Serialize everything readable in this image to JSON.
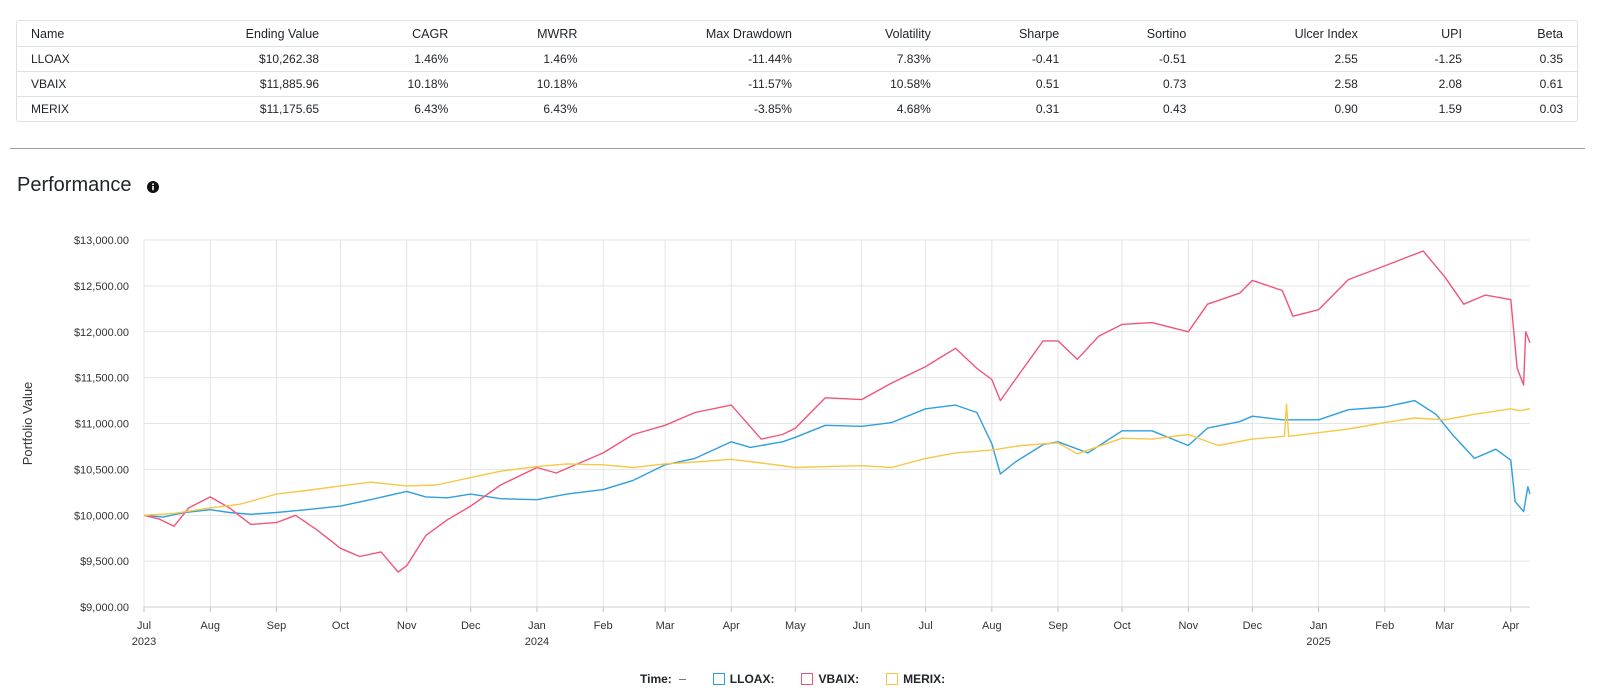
{
  "stats_table": {
    "columns": [
      "Name",
      "Ending Value",
      "CAGR",
      "MWRR",
      "Max Drawdown",
      "Volatility",
      "Sharpe",
      "Sortino",
      "Ulcer Index",
      "UPI",
      "Beta"
    ],
    "rows": [
      [
        "LLOAX",
        "$10,262.38",
        "1.46%",
        "1.46%",
        "-11.44%",
        "7.83%",
        "-0.41",
        "-0.51",
        "2.55",
        "-1.25",
        "0.35"
      ],
      [
        "VBAIX",
        "$11,885.96",
        "10.18%",
        "10.18%",
        "-11.57%",
        "10.58%",
        "0.51",
        "0.73",
        "2.58",
        "2.08",
        "0.61"
      ],
      [
        "MERIX",
        "$11,175.65",
        "6.43%",
        "6.43%",
        "-3.85%",
        "4.68%",
        "0.31",
        "0.43",
        "0.90",
        "1.59",
        "0.03"
      ]
    ]
  },
  "performance": {
    "title": "Performance",
    "info_icon": "info-circle-icon"
  },
  "chart_data": {
    "type": "line",
    "title": "",
    "xlabel": "Time",
    "ylabel": "Portfolio Value",
    "ylim": [
      9000,
      13000
    ],
    "yticks": [
      9000,
      9500,
      10000,
      10500,
      11000,
      11500,
      12000,
      12500,
      13000
    ],
    "ytick_labels": [
      "$9,000.00",
      "$9,500.00",
      "$10,000.00",
      "$10,500.00",
      "$11,000.00",
      "$11,500.00",
      "$12,000.00",
      "$12,500.00",
      "$13,000.00"
    ],
    "xlim": [
      "2023-07-01",
      "2025-04-10"
    ],
    "xticks": [
      {
        "date": "2023-07-01",
        "label": "Jul",
        "sublabel": "2023"
      },
      {
        "date": "2023-08-01",
        "label": "Aug",
        "sublabel": ""
      },
      {
        "date": "2023-09-01",
        "label": "Sep",
        "sublabel": ""
      },
      {
        "date": "2023-10-01",
        "label": "Oct",
        "sublabel": ""
      },
      {
        "date": "2023-11-01",
        "label": "Nov",
        "sublabel": ""
      },
      {
        "date": "2023-12-01",
        "label": "Dec",
        "sublabel": ""
      },
      {
        "date": "2024-01-01",
        "label": "Jan",
        "sublabel": "2024"
      },
      {
        "date": "2024-02-01",
        "label": "Feb",
        "sublabel": ""
      },
      {
        "date": "2024-03-01",
        "label": "Mar",
        "sublabel": ""
      },
      {
        "date": "2024-04-01",
        "label": "Apr",
        "sublabel": ""
      },
      {
        "date": "2024-05-01",
        "label": "May",
        "sublabel": ""
      },
      {
        "date": "2024-06-01",
        "label": "Jun",
        "sublabel": ""
      },
      {
        "date": "2024-07-01",
        "label": "Jul",
        "sublabel": ""
      },
      {
        "date": "2024-08-01",
        "label": "Aug",
        "sublabel": ""
      },
      {
        "date": "2024-09-01",
        "label": "Sep",
        "sublabel": ""
      },
      {
        "date": "2024-10-01",
        "label": "Oct",
        "sublabel": ""
      },
      {
        "date": "2024-11-01",
        "label": "Nov",
        "sublabel": ""
      },
      {
        "date": "2024-12-01",
        "label": "Dec",
        "sublabel": ""
      },
      {
        "date": "2025-01-01",
        "label": "Jan",
        "sublabel": "2025"
      },
      {
        "date": "2025-02-01",
        "label": "Feb",
        "sublabel": ""
      },
      {
        "date": "2025-03-01",
        "label": "Mar",
        "sublabel": ""
      },
      {
        "date": "2025-04-01",
        "label": "Apr",
        "sublabel": ""
      }
    ],
    "grid": true,
    "legend_position": "bottom-center",
    "series": [
      {
        "name": "LLOAX:",
        "color": "#2e9fe0",
        "points": [
          [
            "2023-07-01",
            10000
          ],
          [
            "2023-07-10",
            9980
          ],
          [
            "2023-07-20",
            10030
          ],
          [
            "2023-08-01",
            10060
          ],
          [
            "2023-08-10",
            10030
          ],
          [
            "2023-08-20",
            10010
          ],
          [
            "2023-09-01",
            10030
          ],
          [
            "2023-09-15",
            10060
          ],
          [
            "2023-10-01",
            10100
          ],
          [
            "2023-10-15",
            10170
          ],
          [
            "2023-11-01",
            10260
          ],
          [
            "2023-11-10",
            10200
          ],
          [
            "2023-11-20",
            10190
          ],
          [
            "2023-12-01",
            10230
          ],
          [
            "2023-12-15",
            10180
          ],
          [
            "2024-01-01",
            10170
          ],
          [
            "2024-01-15",
            10230
          ],
          [
            "2024-02-01",
            10280
          ],
          [
            "2024-02-15",
            10380
          ],
          [
            "2024-03-01",
            10550
          ],
          [
            "2024-03-15",
            10620
          ],
          [
            "2024-04-01",
            10800
          ],
          [
            "2024-04-10",
            10740
          ],
          [
            "2024-04-25",
            10800
          ],
          [
            "2024-05-01",
            10850
          ],
          [
            "2024-05-15",
            10980
          ],
          [
            "2024-06-01",
            10970
          ],
          [
            "2024-06-15",
            11010
          ],
          [
            "2024-07-01",
            11160
          ],
          [
            "2024-07-15",
            11200
          ],
          [
            "2024-07-25",
            11120
          ],
          [
            "2024-08-01",
            10780
          ],
          [
            "2024-08-05",
            10450
          ],
          [
            "2024-08-12",
            10580
          ],
          [
            "2024-08-25",
            10770
          ],
          [
            "2024-09-01",
            10800
          ],
          [
            "2024-09-15",
            10680
          ],
          [
            "2024-10-01",
            10920
          ],
          [
            "2024-10-15",
            10920
          ],
          [
            "2024-11-01",
            10760
          ],
          [
            "2024-11-10",
            10950
          ],
          [
            "2024-11-25",
            11020
          ],
          [
            "2024-12-01",
            11080
          ],
          [
            "2024-12-15",
            11040
          ],
          [
            "2025-01-01",
            11040
          ],
          [
            "2025-01-15",
            11150
          ],
          [
            "2025-02-01",
            11180
          ],
          [
            "2025-02-15",
            11250
          ],
          [
            "2025-02-25",
            11100
          ],
          [
            "2025-03-05",
            10870
          ],
          [
            "2025-03-15",
            10620
          ],
          [
            "2025-03-25",
            10720
          ],
          [
            "2025-04-01",
            10600
          ],
          [
            "2025-04-03",
            10150
          ],
          [
            "2025-04-07",
            10040
          ],
          [
            "2025-04-09",
            10310
          ],
          [
            "2025-04-10",
            10230
          ]
        ]
      },
      {
        "name": "VBAIX:",
        "color": "#f0557a",
        "points": [
          [
            "2023-07-01",
            10000
          ],
          [
            "2023-07-08",
            9960
          ],
          [
            "2023-07-15",
            9880
          ],
          [
            "2023-07-22",
            10080
          ],
          [
            "2023-08-01",
            10200
          ],
          [
            "2023-08-10",
            10080
          ],
          [
            "2023-08-20",
            9900
          ],
          [
            "2023-09-01",
            9920
          ],
          [
            "2023-09-10",
            10000
          ],
          [
            "2023-09-20",
            9840
          ],
          [
            "2023-10-01",
            9640
          ],
          [
            "2023-10-10",
            9550
          ],
          [
            "2023-10-20",
            9600
          ],
          [
            "2023-10-28",
            9380
          ],
          [
            "2023-11-01",
            9450
          ],
          [
            "2023-11-10",
            9780
          ],
          [
            "2023-11-20",
            9950
          ],
          [
            "2023-12-01",
            10100
          ],
          [
            "2023-12-15",
            10330
          ],
          [
            "2024-01-01",
            10520
          ],
          [
            "2024-01-10",
            10460
          ],
          [
            "2024-01-20",
            10560
          ],
          [
            "2024-02-01",
            10680
          ],
          [
            "2024-02-15",
            10880
          ],
          [
            "2024-03-01",
            10980
          ],
          [
            "2024-03-15",
            11120
          ],
          [
            "2024-04-01",
            11200
          ],
          [
            "2024-04-15",
            10830
          ],
          [
            "2024-04-25",
            10880
          ],
          [
            "2024-05-01",
            10950
          ],
          [
            "2024-05-15",
            11280
          ],
          [
            "2024-06-01",
            11260
          ],
          [
            "2024-06-15",
            11440
          ],
          [
            "2024-07-01",
            11620
          ],
          [
            "2024-07-15",
            11820
          ],
          [
            "2024-07-25",
            11600
          ],
          [
            "2024-08-01",
            11480
          ],
          [
            "2024-08-05",
            11250
          ],
          [
            "2024-08-12",
            11480
          ],
          [
            "2024-08-25",
            11900
          ],
          [
            "2024-09-01",
            11900
          ],
          [
            "2024-09-10",
            11700
          ],
          [
            "2024-09-20",
            11950
          ],
          [
            "2024-10-01",
            12080
          ],
          [
            "2024-10-15",
            12100
          ],
          [
            "2024-11-01",
            12000
          ],
          [
            "2024-11-10",
            12300
          ],
          [
            "2024-11-25",
            12420
          ],
          [
            "2024-12-01",
            12560
          ],
          [
            "2024-12-15",
            12450
          ],
          [
            "2024-12-20",
            12170
          ],
          [
            "2025-01-01",
            12240
          ],
          [
            "2025-01-15",
            12570
          ],
          [
            "2025-01-30",
            12700
          ],
          [
            "2025-02-10",
            12800
          ],
          [
            "2025-02-19",
            12880
          ],
          [
            "2025-03-01",
            12600
          ],
          [
            "2025-03-10",
            12300
          ],
          [
            "2025-03-20",
            12400
          ],
          [
            "2025-04-01",
            12350
          ],
          [
            "2025-04-04",
            11600
          ],
          [
            "2025-04-07",
            11420
          ],
          [
            "2025-04-08",
            12000
          ],
          [
            "2025-04-10",
            11880
          ]
        ]
      },
      {
        "name": "MERIX:",
        "color": "#f7c746",
        "points": [
          [
            "2023-07-01",
            10000
          ],
          [
            "2023-07-15",
            10020
          ],
          [
            "2023-08-01",
            10080
          ],
          [
            "2023-08-15",
            10120
          ],
          [
            "2023-09-01",
            10230
          ],
          [
            "2023-09-15",
            10270
          ],
          [
            "2023-10-01",
            10320
          ],
          [
            "2023-10-15",
            10360
          ],
          [
            "2023-11-01",
            10320
          ],
          [
            "2023-11-15",
            10330
          ],
          [
            "2023-12-01",
            10410
          ],
          [
            "2023-12-15",
            10480
          ],
          [
            "2024-01-01",
            10530
          ],
          [
            "2024-01-15",
            10560
          ],
          [
            "2024-02-01",
            10550
          ],
          [
            "2024-02-15",
            10520
          ],
          [
            "2024-03-01",
            10560
          ],
          [
            "2024-03-15",
            10580
          ],
          [
            "2024-04-01",
            10610
          ],
          [
            "2024-04-15",
            10570
          ],
          [
            "2024-05-01",
            10520
          ],
          [
            "2024-05-15",
            10530
          ],
          [
            "2024-06-01",
            10540
          ],
          [
            "2024-06-15",
            10520
          ],
          [
            "2024-07-01",
            10620
          ],
          [
            "2024-07-15",
            10680
          ],
          [
            "2024-08-01",
            10710
          ],
          [
            "2024-08-15",
            10760
          ],
          [
            "2024-09-01",
            10790
          ],
          [
            "2024-09-10",
            10670
          ],
          [
            "2024-10-01",
            10840
          ],
          [
            "2024-10-15",
            10830
          ],
          [
            "2024-11-01",
            10880
          ],
          [
            "2024-11-15",
            10760
          ],
          [
            "2024-12-01",
            10830
          ],
          [
            "2024-12-16",
            10860
          ],
          [
            "2024-12-17",
            11210
          ],
          [
            "2024-12-18",
            10860
          ],
          [
            "2025-01-01",
            10900
          ],
          [
            "2025-01-15",
            10940
          ],
          [
            "2025-02-01",
            11010
          ],
          [
            "2025-02-15",
            11060
          ],
          [
            "2025-03-01",
            11040
          ],
          [
            "2025-03-15",
            11100
          ],
          [
            "2025-04-01",
            11160
          ],
          [
            "2025-04-05",
            11140
          ],
          [
            "2025-04-10",
            11160
          ]
        ]
      }
    ]
  },
  "legend": {
    "time_label": "Time:",
    "items": [
      {
        "label": "LLOAX:",
        "color": "#2e9fe0"
      },
      {
        "label": "VBAIX:",
        "color": "#f0557a"
      },
      {
        "label": "MERIX:",
        "color": "#f7c746"
      }
    ]
  }
}
